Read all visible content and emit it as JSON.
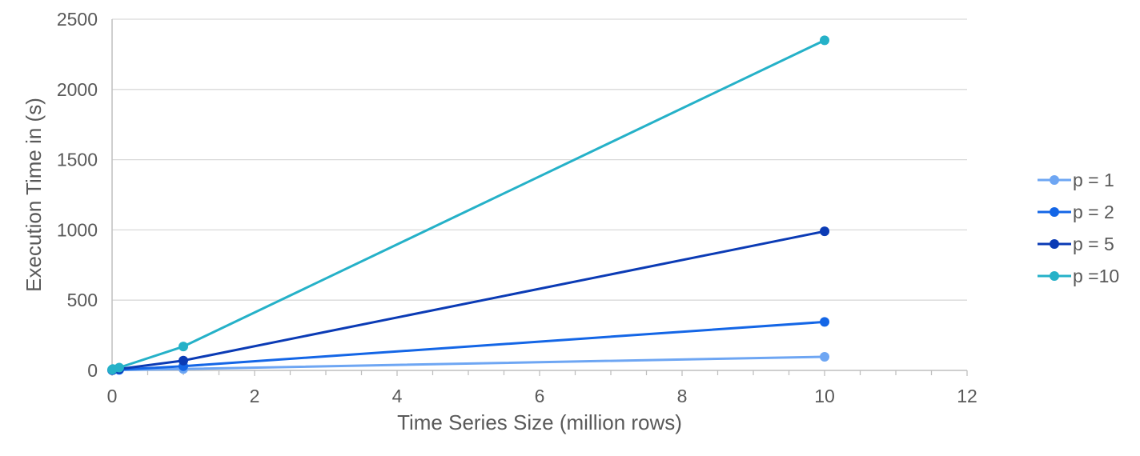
{
  "chart_data": {
    "type": "line",
    "title": "",
    "xlabel": "Time Series Size (million rows)",
    "ylabel": "Execution Time in (s)",
    "xlim": [
      0,
      12
    ],
    "ylim": [
      0,
      2500
    ],
    "xticks": [
      0,
      2,
      4,
      6,
      8,
      10,
      12
    ],
    "yticks": [
      0,
      500,
      1000,
      1500,
      2000,
      2500
    ],
    "x_minor_step": 0.5,
    "grid": {
      "horizontal": true,
      "vertical": false
    },
    "legend_position": "right",
    "series": [
      {
        "name": "p = 1",
        "color": "#6ea6f3",
        "points": [
          [
            0.001,
            1
          ],
          [
            0.01,
            2
          ],
          [
            0.1,
            3
          ],
          [
            1,
            10
          ],
          [
            10,
            97
          ]
        ]
      },
      {
        "name": "p = 2",
        "color": "#1466e6",
        "points": [
          [
            0.001,
            2
          ],
          [
            0.01,
            3
          ],
          [
            0.1,
            5
          ],
          [
            1,
            30
          ],
          [
            10,
            345
          ]
        ]
      },
      {
        "name": "p = 5",
        "color": "#0b3bb5",
        "points": [
          [
            0.001,
            3
          ],
          [
            0.01,
            5
          ],
          [
            0.1,
            10
          ],
          [
            1,
            70
          ],
          [
            10,
            990
          ]
        ]
      },
      {
        "name": "p =10",
        "color": "#25b1c8",
        "points": [
          [
            0.001,
            5
          ],
          [
            0.01,
            10
          ],
          [
            0.1,
            20
          ],
          [
            1,
            170
          ],
          [
            10,
            2350
          ]
        ]
      }
    ]
  },
  "colors": {
    "gridline": "#d9d9d9",
    "axis": "#bfbfbf",
    "text": "#595959"
  }
}
